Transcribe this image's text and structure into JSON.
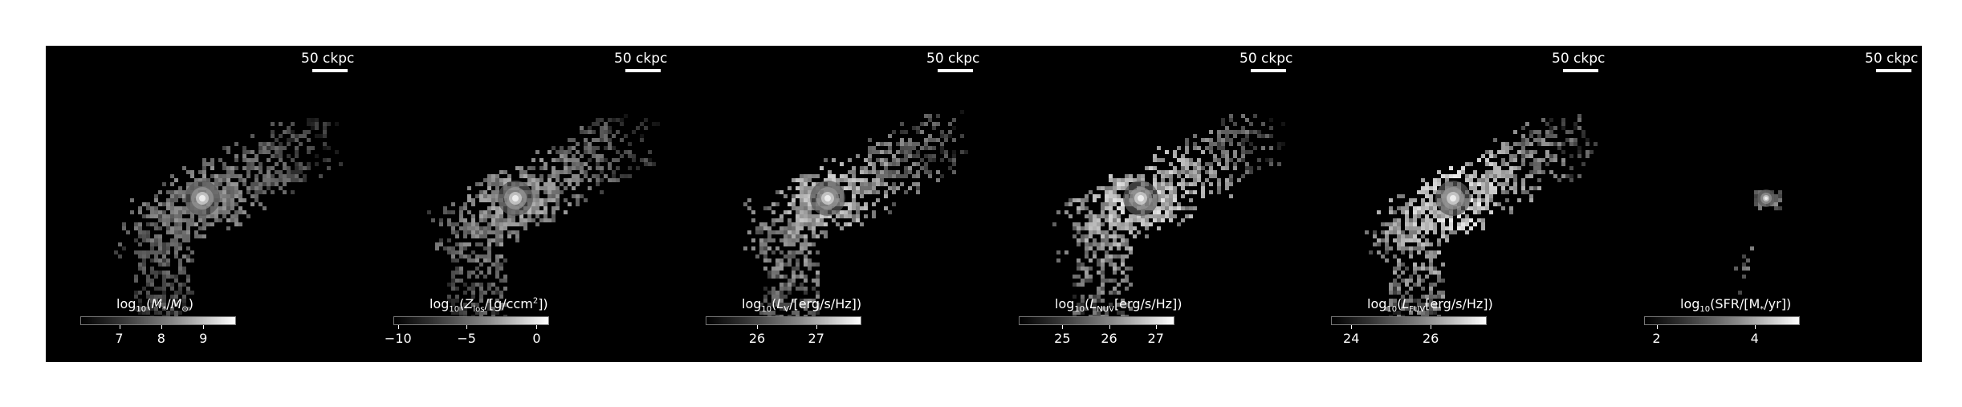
{
  "panels": [
    {
      "scalebar": "50 ckpc",
      "colorbar_html": "log<sub>10</sub>(<i>M</i><sub>*</sub>/<i>M</i><sub>⊙</sub>)",
      "ticks": [
        "7",
        "8",
        "9"
      ],
      "tick_pos": [
        0.25,
        0.52,
        0.79
      ],
      "brightness": 0.75,
      "core": true
    },
    {
      "scalebar": "50 ckpc",
      "colorbar_html": "log<sub>10</sub>(<i>Z</i><sub>los</sub>/[g/ccm<sup>2</sup>])",
      "ticks": [
        "−10",
        "−5",
        "0"
      ],
      "tick_pos": [
        0.03,
        0.47,
        0.92
      ],
      "brightness": 0.85,
      "core": true
    },
    {
      "scalebar": "50 ckpc",
      "colorbar_html": "log<sub>10</sub>(<i>L</i><sub>V</sub>/[erg/s/Hz])",
      "ticks": [
        "26",
        "27"
      ],
      "tick_pos": [
        0.33,
        0.71
      ],
      "brightness": 1.0,
      "core": true
    },
    {
      "scalebar": "50 ckpc",
      "colorbar_html": "log<sub>10</sub>(<i>L</i><sub>NUV</sub>[erg/s/Hz])",
      "ticks": [
        "25",
        "26",
        "27"
      ],
      "tick_pos": [
        0.28,
        0.58,
        0.88
      ],
      "brightness": 1.1,
      "core": true
    },
    {
      "scalebar": "50 ckpc",
      "colorbar_html": "log<sub>10</sub>(<i>L</i><sub>FUV</sub>[erg/s/Hz])",
      "ticks": [
        "24",
        "26"
      ],
      "tick_pos": [
        0.13,
        0.64
      ],
      "brightness": 1.15,
      "core": true
    },
    {
      "scalebar": "50 ckpc",
      "colorbar_html": "log<sub>10</sub>(SFR/[M<sub>*</sub>/yr])",
      "ticks": [
        "2",
        "4"
      ],
      "tick_pos": [
        0.08,
        0.71
      ],
      "brightness": 0.2,
      "core": true,
      "sparse": true
    }
  ]
}
